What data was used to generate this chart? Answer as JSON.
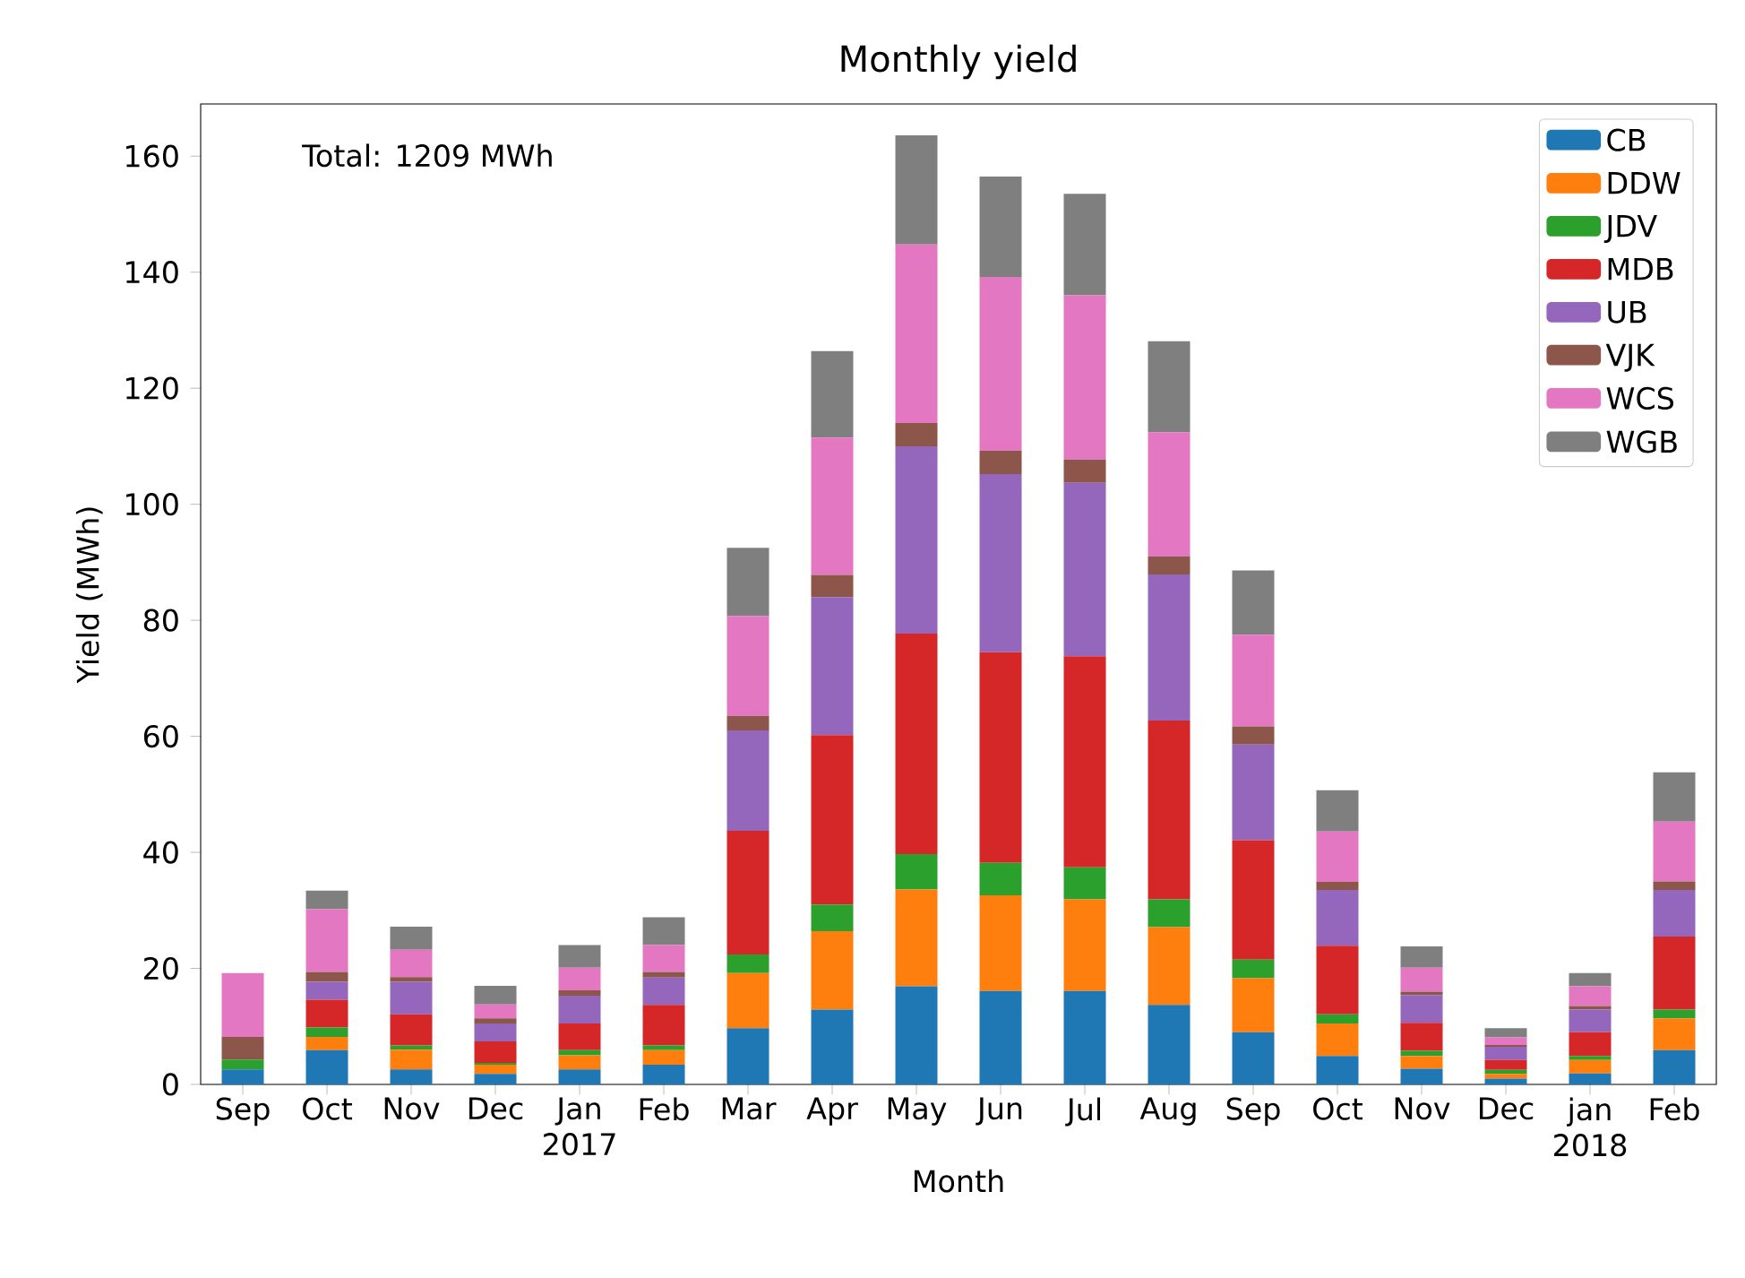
{
  "chart_data": {
    "type": "bar",
    "stacked": true,
    "title": "Monthly yield",
    "xlabel": "Month",
    "ylabel": "Yield (MWh)",
    "annotations": [
      "Total: 1209 MWh"
    ],
    "categories": [
      "Sep",
      "Oct",
      "Nov",
      "Dec",
      "Jan 2017",
      "Feb",
      "Mar",
      "Apr",
      "May",
      "Jun",
      "Jul",
      "Aug",
      "Sep",
      "Oct",
      "Nov",
      "Dec",
      "jan 2018",
      "Feb"
    ],
    "ylim": [
      0,
      169
    ],
    "yticks": [
      0,
      20,
      40,
      60,
      80,
      100,
      120,
      140,
      160
    ],
    "legend": "top right",
    "series": [
      {
        "name": "CB",
        "color": "#1f77b4",
        "values": [
          2.6,
          5.9,
          2.6,
          1.8,
          2.6,
          3.4,
          9.7,
          12.9,
          16.9,
          16.1,
          16.1,
          13.7,
          9.0,
          4.9,
          2.7,
          1.0,
          1.9,
          5.9
        ]
      },
      {
        "name": "DDW",
        "color": "#ff7f0e",
        "values": [
          0,
          2.3,
          3.4,
          1.6,
          2.4,
          2.5,
          9.5,
          13.5,
          16.7,
          16.5,
          15.8,
          13.4,
          9.3,
          5.6,
          2.2,
          0.8,
          2.3,
          5.5
        ]
      },
      {
        "name": "JDV",
        "color": "#2ca02c",
        "values": [
          1.7,
          1.6,
          0.7,
          0.3,
          0.9,
          0.8,
          3.2,
          4.6,
          6.1,
          5.6,
          5.5,
          4.8,
          3.2,
          1.6,
          0.9,
          0.7,
          0.7,
          1.5
        ]
      },
      {
        "name": "MDB",
        "color": "#d62728",
        "values": [
          0,
          4.8,
          5.4,
          3.7,
          4.6,
          7.0,
          21.3,
          29.2,
          38.0,
          36.3,
          36.4,
          30.8,
          20.6,
          11.8,
          4.8,
          1.7,
          4.1,
          12.6
        ]
      },
      {
        "name": "UB",
        "color": "#9467bd",
        "values": [
          0,
          3.1,
          5.6,
          3.1,
          4.8,
          4.7,
          17.3,
          23.8,
          32.3,
          30.7,
          29.9,
          25.2,
          16.5,
          9.6,
          4.8,
          2.3,
          3.9,
          8.0
        ]
      },
      {
        "name": "VJK",
        "color": "#8c564b",
        "values": [
          3.9,
          1.7,
          0.8,
          0.9,
          0.9,
          1.0,
          2.5,
          3.8,
          4.0,
          4.0,
          4.0,
          3.1,
          3.1,
          1.4,
          0.6,
          0.3,
          0.6,
          1.5
        ]
      },
      {
        "name": "WCS",
        "color": "#e377c2",
        "values": [
          11.0,
          10.8,
          4.7,
          2.4,
          3.9,
          4.6,
          17.2,
          23.7,
          30.8,
          30.0,
          28.3,
          21.4,
          15.8,
          8.7,
          4.1,
          1.3,
          3.4,
          10.3
        ]
      },
      {
        "name": "WGB",
        "color": "#7f7f7f",
        "values": [
          0,
          3.2,
          4.0,
          3.2,
          3.9,
          4.8,
          11.8,
          14.9,
          18.8,
          17.3,
          17.5,
          15.7,
          11.1,
          7.1,
          3.7,
          1.6,
          2.3,
          8.5
        ]
      }
    ]
  }
}
